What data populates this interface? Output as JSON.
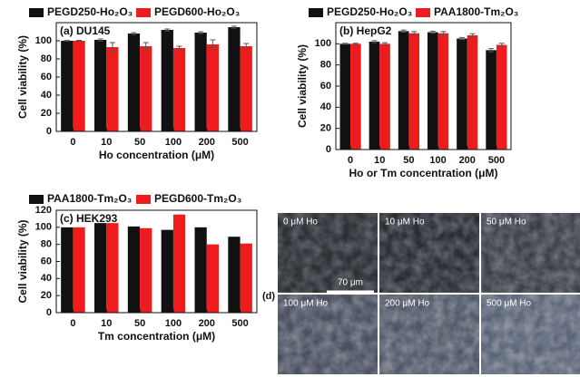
{
  "chart_data": [
    {
      "type": "bar",
      "annotation": "(a) DU145",
      "xlabel": "Ho concentration (μM)",
      "ylabel": "Cell viability (%)",
      "categories": [
        "0",
        "10",
        "50",
        "100",
        "200",
        "500"
      ],
      "ylim": [
        0,
        120
      ],
      "yticks": [
        0,
        20,
        40,
        60,
        80,
        100
      ],
      "legend": "top",
      "series": [
        {
          "name": "PEGD250-Ho₂O₃",
          "color": "#111111",
          "values": [
            100,
            101,
            108,
            112,
            109,
            115
          ],
          "errors": [
            0.5,
            1,
            1,
            1,
            1,
            1
          ]
        },
        {
          "name": "PEGD600-Ho₂O₃",
          "color": "#ee1c1c",
          "values": [
            100,
            93,
            94,
            92,
            96,
            94
          ],
          "errors": [
            0.5,
            5,
            4,
            2,
            5,
            3
          ]
        }
      ]
    },
    {
      "type": "bar",
      "annotation": "(b) HepG2",
      "xlabel": "Ho or Tm concentration (μM)",
      "ylabel": "Cell viability (%)",
      "categories": [
        "0",
        "10",
        "50",
        "100",
        "200",
        "500"
      ],
      "ylim": [
        0,
        120
      ],
      "yticks": [
        0,
        20,
        40,
        60,
        80,
        100
      ],
      "legend": "top",
      "series": [
        {
          "name": "PEGD250-Ho₂O₃",
          "color": "#111111",
          "values": [
            100,
            102,
            112,
            111,
            105,
            94
          ],
          "errors": [
            0.5,
            1,
            1,
            1,
            1,
            1.5
          ]
        },
        {
          "name": "PAA1800-Tm₂O₃",
          "color": "#ee1c1c",
          "values": [
            100,
            100,
            110,
            110,
            108,
            99
          ],
          "errors": [
            0.5,
            1,
            1.5,
            1.5,
            1.5,
            1.5
          ]
        }
      ]
    },
    {
      "type": "bar",
      "annotation": "(c) HEK293",
      "xlabel": "Tm concentration (μM)",
      "ylabel": "Cell viability (%)",
      "categories": [
        "0",
        "10",
        "50",
        "100",
        "200",
        "500"
      ],
      "ylim": [
        0,
        120
      ],
      "yticks": [
        0,
        20,
        40,
        60,
        80,
        100,
        120
      ],
      "legend": "top",
      "series": [
        {
          "name": "PAA1800-Tm₂O₃",
          "color": "#111111",
          "values": [
            100,
            105,
            101,
            97,
            100,
            89
          ]
        },
        {
          "name": "PEGD600-Tm₂O₃",
          "color": "#ee1c1c",
          "values": [
            100,
            105,
            99,
            115,
            80,
            81
          ]
        }
      ]
    }
  ],
  "micrographs": {
    "label": "(d)",
    "scale_bar": "70 μm",
    "panels": [
      "0 μM Ho",
      "10 μM Ho",
      "50 μM Ho",
      "100 μM Ho",
      "200 μM Ho",
      "500 μM Ho"
    ]
  }
}
